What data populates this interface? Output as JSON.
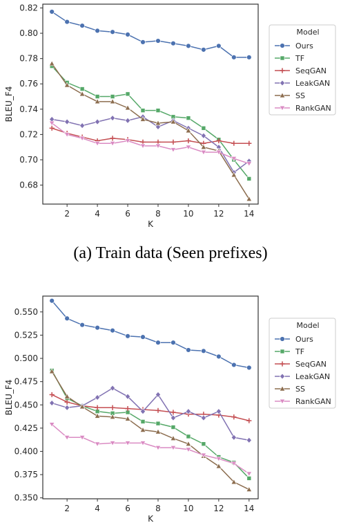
{
  "chart_data": [
    {
      "type": "line",
      "caption": "(a) Train data (Seen prefixes)",
      "xlabel": "K",
      "ylabel": "BLEU_F4",
      "xlim": [
        0.4,
        14.6
      ],
      "ylim": [
        0.665,
        0.823
      ],
      "xticks": [
        "2",
        "4",
        "6",
        "8",
        "10",
        "12",
        "14"
      ],
      "yticks": [
        "0.68",
        "0.70",
        "0.72",
        "0.74",
        "0.76",
        "0.78",
        "0.80",
        "0.82"
      ],
      "legend": {
        "title": "Model",
        "position": "right"
      },
      "x": [
        1,
        2,
        3,
        4,
        5,
        6,
        7,
        8,
        9,
        10,
        11,
        12,
        13,
        14
      ],
      "series": [
        {
          "name": "Ours",
          "color": "#4c72b0",
          "marker": "circle",
          "values": [
            0.817,
            0.809,
            0.806,
            0.802,
            0.801,
            0.799,
            0.793,
            0.794,
            0.792,
            0.79,
            0.787,
            0.79,
            0.781,
            0.781
          ]
        },
        {
          "name": "TF",
          "color": "#55a868",
          "marker": "square",
          "values": [
            0.774,
            0.761,
            0.756,
            0.75,
            0.75,
            0.752,
            0.739,
            0.739,
            0.734,
            0.733,
            0.725,
            0.716,
            0.7,
            0.685
          ]
        },
        {
          "name": "SeqGAN",
          "color": "#c44e52",
          "marker": "plus",
          "values": [
            0.725,
            0.721,
            0.718,
            0.715,
            0.717,
            0.716,
            0.714,
            0.714,
            0.714,
            0.715,
            0.713,
            0.715,
            0.713,
            0.713
          ]
        },
        {
          "name": "LeakGAN",
          "color": "#8172b2",
          "marker": "diamond",
          "values": [
            0.732,
            0.73,
            0.727,
            0.73,
            0.733,
            0.731,
            0.734,
            0.726,
            0.731,
            0.725,
            0.719,
            0.71,
            0.69,
            0.699
          ]
        },
        {
          "name": "SS",
          "color": "#8c6d4f",
          "marker": "triangle",
          "values": [
            0.776,
            0.759,
            0.752,
            0.746,
            0.746,
            0.741,
            0.732,
            0.729,
            0.73,
            0.723,
            0.71,
            0.707,
            0.688,
            0.669
          ]
        },
        {
          "name": "RankGAN",
          "color": "#da8bc3",
          "marker": "tri-down",
          "values": [
            0.729,
            0.72,
            0.717,
            0.713,
            0.713,
            0.715,
            0.711,
            0.711,
            0.708,
            0.71,
            0.706,
            0.706,
            0.701,
            0.697
          ]
        }
      ]
    },
    {
      "type": "line",
      "caption": "",
      "xlabel": "K",
      "ylabel": "BLEU_F4",
      "xlim": [
        0.4,
        14.6
      ],
      "ylim": [
        0.349,
        0.567
      ],
      "xticks": [
        "2",
        "4",
        "6",
        "8",
        "10",
        "12",
        "14"
      ],
      "yticks": [
        "0.350",
        "0.375",
        "0.400",
        "0.425",
        "0.450",
        "0.475",
        "0.500",
        "0.525",
        "0.550"
      ],
      "legend": {
        "title": "Model",
        "position": "right"
      },
      "x": [
        1,
        2,
        3,
        4,
        5,
        6,
        7,
        8,
        9,
        10,
        11,
        12,
        13,
        14
      ],
      "series": [
        {
          "name": "Ours",
          "color": "#4c72b0",
          "marker": "circle",
          "values": [
            0.562,
            0.543,
            0.536,
            0.533,
            0.53,
            0.524,
            0.523,
            0.517,
            0.517,
            0.509,
            0.508,
            0.502,
            0.493,
            0.49
          ]
        },
        {
          "name": "TF",
          "color": "#55a868",
          "marker": "square",
          "values": [
            0.487,
            0.457,
            0.449,
            0.443,
            0.441,
            0.442,
            0.432,
            0.43,
            0.426,
            0.416,
            0.408,
            0.394,
            0.388,
            0.371
          ]
        },
        {
          "name": "SeqGAN",
          "color": "#c44e52",
          "marker": "plus",
          "values": [
            0.461,
            0.453,
            0.449,
            0.447,
            0.447,
            0.446,
            0.445,
            0.444,
            0.442,
            0.44,
            0.44,
            0.439,
            0.437,
            0.433
          ]
        },
        {
          "name": "LeakGAN",
          "color": "#8172b2",
          "marker": "diamond",
          "values": [
            0.452,
            0.447,
            0.449,
            0.458,
            0.468,
            0.459,
            0.443,
            0.461,
            0.436,
            0.443,
            0.436,
            0.443,
            0.415,
            0.412
          ]
        },
        {
          "name": "SS",
          "color": "#8c6d4f",
          "marker": "triangle",
          "values": [
            0.486,
            0.459,
            0.448,
            0.438,
            0.437,
            0.435,
            0.423,
            0.421,
            0.414,
            0.408,
            0.395,
            0.384,
            0.367,
            0.359
          ]
        },
        {
          "name": "RankGAN",
          "color": "#da8bc3",
          "marker": "tri-down",
          "values": [
            0.429,
            0.415,
            0.415,
            0.408,
            0.409,
            0.409,
            0.409,
            0.404,
            0.404,
            0.402,
            0.396,
            0.392,
            0.387,
            0.376
          ]
        }
      ]
    }
  ]
}
